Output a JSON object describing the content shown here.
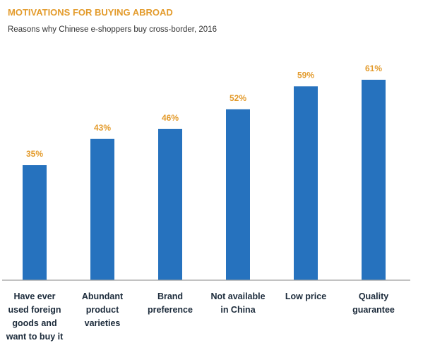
{
  "colors": {
    "bar": "#2672be",
    "value_label": "#e39b2c",
    "title": "#e39b2c",
    "axis": "#9e9e9e",
    "category_text": "#1b2a3a"
  },
  "chart_data": {
    "type": "bar",
    "title": "MOTIVATIONS FOR BUYING ABROAD",
    "subtitle": "Reasons why Chinese e-shoppers buy cross-border, 2016",
    "xlabel": "",
    "ylabel": "",
    "ylim": [
      0,
      70
    ],
    "grid": false,
    "legend": "none",
    "categories": [
      "Have ever used foreign goods and want to buy it",
      "Abundant product varieties",
      "Brand preference",
      "Not available in China",
      "Low price",
      "Quality guarantee"
    ],
    "category_lines": [
      [
        "Have ever",
        "used foreign",
        "goods and",
        "want to buy it"
      ],
      [
        "Abundant",
        "product",
        "varieties"
      ],
      [
        "Brand",
        "preference"
      ],
      [
        "Not available",
        "in China"
      ],
      [
        "Low price"
      ],
      [
        "Quality",
        "guarantee"
      ]
    ],
    "values": [
      35,
      43,
      46,
      52,
      59,
      61
    ],
    "value_labels": [
      "35%",
      "43%",
      "46%",
      "52%",
      "59%",
      "61%"
    ]
  }
}
